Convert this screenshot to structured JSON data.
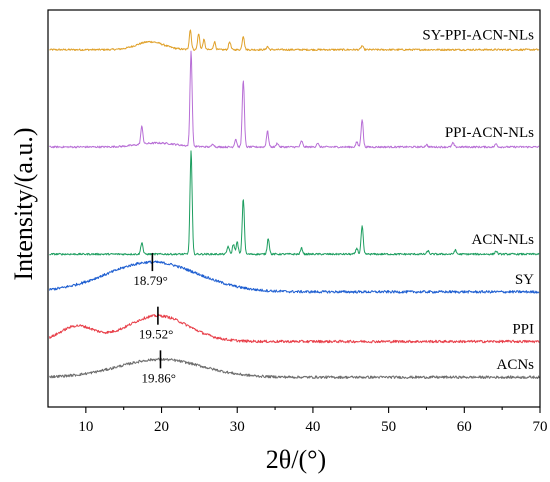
{
  "chart_data": {
    "type": "line",
    "title": "",
    "xlabel": "2θ/(°)",
    "ylabel": "Intensity/(a.u.)",
    "xlim": [
      5,
      70
    ],
    "x_ticks": [
      10,
      20,
      30,
      40,
      50,
      60,
      70
    ],
    "grid": false,
    "legend": "labels beside each curve",
    "series": [
      {
        "name": "SY-PPI-ACN-NLs",
        "color": "#E0A12A",
        "baseline": 0.9,
        "peaks": [
          {
            "x": 18.5,
            "h": 0.02,
            "w": 1.8
          },
          {
            "x": 23.8,
            "h": 0.05,
            "w": 0.14
          },
          {
            "x": 24.9,
            "h": 0.04,
            "w": 0.14
          },
          {
            "x": 25.6,
            "h": 0.025,
            "w": 0.14
          },
          {
            "x": 27.0,
            "h": 0.02,
            "w": 0.14
          },
          {
            "x": 29.0,
            "h": 0.02,
            "w": 0.14
          },
          {
            "x": 30.8,
            "h": 0.035,
            "w": 0.14
          },
          {
            "x": 34.0,
            "h": 0.008,
            "w": 0.14
          },
          {
            "x": 46.5,
            "h": 0.01,
            "w": 0.14
          }
        ]
      },
      {
        "name": "PPI-ACN-NLs",
        "color": "#B86FD6",
        "baseline": 0.655,
        "peaks": [
          {
            "x": 17.4,
            "h": 0.045,
            "w": 0.14
          },
          {
            "x": 19.5,
            "h": 0.01,
            "w": 2.5
          },
          {
            "x": 23.9,
            "h": 0.24,
            "w": 0.14
          },
          {
            "x": 26.8,
            "h": 0.008,
            "w": 0.14
          },
          {
            "x": 29.8,
            "h": 0.02,
            "w": 0.14
          },
          {
            "x": 30.8,
            "h": 0.17,
            "w": 0.14
          },
          {
            "x": 34.0,
            "h": 0.04,
            "w": 0.14
          },
          {
            "x": 35.3,
            "h": 0.01,
            "w": 0.14
          },
          {
            "x": 38.5,
            "h": 0.015,
            "w": 0.14
          },
          {
            "x": 40.6,
            "h": 0.01,
            "w": 0.14
          },
          {
            "x": 45.8,
            "h": 0.012,
            "w": 0.14
          },
          {
            "x": 46.5,
            "h": 0.07,
            "w": 0.14
          },
          {
            "x": 55.0,
            "h": 0.006,
            "w": 0.14
          },
          {
            "x": 58.5,
            "h": 0.01,
            "w": 0.14
          },
          {
            "x": 64.2,
            "h": 0.008,
            "w": 0.14
          }
        ]
      },
      {
        "name": "ACN-NLs",
        "color": "#1E9E60",
        "baseline": 0.385,
        "peaks": [
          {
            "x": 17.4,
            "h": 0.03,
            "w": 0.14
          },
          {
            "x": 23.9,
            "h": 0.26,
            "w": 0.14
          },
          {
            "x": 28.8,
            "h": 0.02,
            "w": 0.14
          },
          {
            "x": 29.5,
            "h": 0.025,
            "w": 0.14
          },
          {
            "x": 30.0,
            "h": 0.03,
            "w": 0.14
          },
          {
            "x": 30.8,
            "h": 0.14,
            "w": 0.14
          },
          {
            "x": 34.1,
            "h": 0.04,
            "w": 0.14
          },
          {
            "x": 38.5,
            "h": 0.015,
            "w": 0.14
          },
          {
            "x": 45.8,
            "h": 0.015,
            "w": 0.14
          },
          {
            "x": 46.5,
            "h": 0.07,
            "w": 0.14
          },
          {
            "x": 55.2,
            "h": 0.008,
            "w": 0.14
          },
          {
            "x": 58.8,
            "h": 0.01,
            "w": 0.14
          },
          {
            "x": 64.2,
            "h": 0.008,
            "w": 0.14
          }
        ]
      },
      {
        "name": "SY",
        "color": "#1F5FD1",
        "baseline": 0.29,
        "peaks": [
          {
            "x": 18.79,
            "h": 0.075,
            "w": 6.0
          }
        ]
      },
      {
        "name": "PPI",
        "color": "#E8404A",
        "baseline": 0.165,
        "peaks": [
          {
            "x": 8.8,
            "h": 0.038,
            "w": 2.2
          },
          {
            "x": 19.52,
            "h": 0.065,
            "w": 4.0
          }
        ]
      },
      {
        "name": "ACNs",
        "color": "#6E6E6E",
        "baseline": 0.075,
        "peaks": [
          {
            "x": 19.86,
            "h": 0.045,
            "w": 5.5
          }
        ]
      }
    ],
    "annotations": [
      {
        "series": "SY",
        "x": 18.79,
        "text": "18.79°"
      },
      {
        "series": "PPI",
        "x": 19.52,
        "text": "19.52°"
      },
      {
        "series": "ACNs",
        "x": 19.86,
        "text": "19.86°"
      }
    ]
  }
}
